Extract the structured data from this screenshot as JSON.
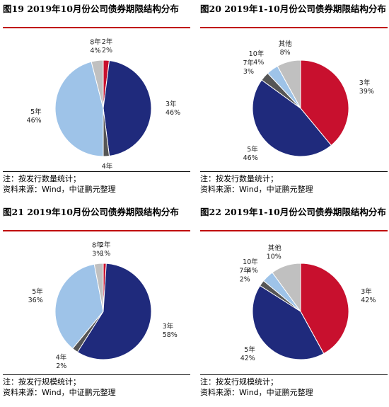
{
  "chart_data": [
    {
      "type": "pie",
      "title": "图19    2019年10月份公司债券期限结构分布",
      "categories": [
        "2年",
        "3年",
        "4年",
        "5年",
        "8年"
      ],
      "values": [
        2,
        46,
        2,
        46,
        4
      ],
      "value_labels": [
        "2%",
        "46%",
        "2%",
        "46%",
        "4%"
      ],
      "colors": [
        "#c8102e",
        "#1f2a7c",
        "#555555",
        "#9ec3e8",
        "#c0c0c0"
      ],
      "notes": [
        "注：按发行数量统计；",
        "资料来源：Wind，中证鹏元整理"
      ]
    },
    {
      "type": "pie",
      "title": "图20    2019年1-10月份公司债券期限结构分布",
      "categories": [
        "3年",
        "5年",
        "7年",
        "10年",
        "其他"
      ],
      "values": [
        39,
        46,
        3,
        4,
        8
      ],
      "value_labels": [
        "39%",
        "46%",
        "3%",
        "4%",
        "8%"
      ],
      "colors": [
        "#c8102e",
        "#1f2a7c",
        "#555555",
        "#9ec3e8",
        "#c0c0c0"
      ],
      "notes": [
        "注：按发行数量统计；",
        "资料来源：Wind，中证鹏元整理"
      ]
    },
    {
      "type": "pie",
      "title": "图21    2019年10月份公司债券期限结构分布",
      "categories": [
        "2年",
        "3年",
        "4年",
        "5年",
        "8年"
      ],
      "values": [
        1,
        58,
        2,
        36,
        3
      ],
      "value_labels": [
        "1%",
        "58%",
        "2%",
        "36%",
        "3%"
      ],
      "colors": [
        "#c8102e",
        "#1f2a7c",
        "#555555",
        "#9ec3e8",
        "#c0c0c0"
      ],
      "notes": [
        "注：按发行规模统计；",
        "资料来源：Wind，中证鹏元整理"
      ]
    },
    {
      "type": "pie",
      "title": "图22    2019年1-10月份公司债券期限结构分布",
      "categories": [
        "3年",
        "5年",
        "7年",
        "10年",
        "其他"
      ],
      "values": [
        42,
        42,
        2,
        4,
        10
      ],
      "value_labels": [
        "42%",
        "42%",
        "2%",
        "4%",
        "10%"
      ],
      "colors": [
        "#c8102e",
        "#1f2a7c",
        "#555555",
        "#9ec3e8",
        "#c0c0c0"
      ],
      "notes": [
        "注：按发行规模统计；",
        "资料来源：Wind，中证鹏元整理"
      ]
    }
  ]
}
